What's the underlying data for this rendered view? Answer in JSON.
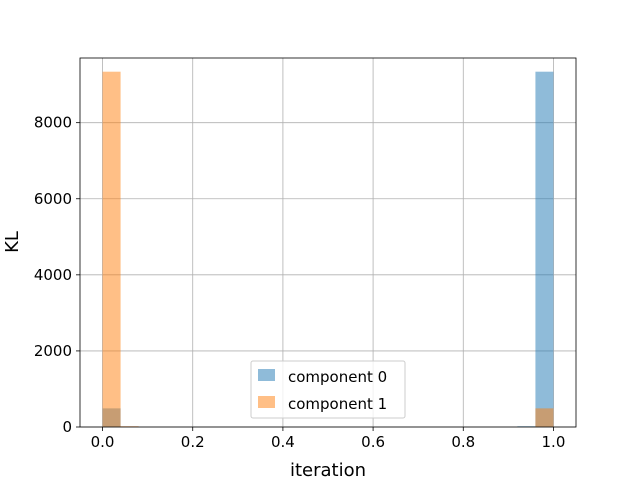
{
  "chart_data": {
    "type": "bar",
    "xlabel": "iteration",
    "ylabel": "KL",
    "xlim": [
      -0.05,
      1.05
    ],
    "ylim": [
      0,
      9700
    ],
    "xticks": [
      0.0,
      0.2,
      0.4,
      0.6,
      0.8,
      1.0
    ],
    "xtick_labels": [
      "0.0",
      "0.2",
      "0.4",
      "0.6",
      "0.8",
      "1.0"
    ],
    "yticks": [
      0,
      2000,
      4000,
      6000,
      8000
    ],
    "ytick_labels": [
      "0",
      "2000",
      "4000",
      "6000",
      "8000"
    ],
    "grid": true,
    "legend_position": "lower-center",
    "bin_width": 0.04,
    "series": [
      {
        "name": "component 0",
        "color": "#1f77b4",
        "opacity": 0.5,
        "bins": [
          {
            "x0": 0.0,
            "value": 490
          },
          {
            "x0": 0.92,
            "value": 20
          },
          {
            "x0": 0.96,
            "value": 9340
          }
        ]
      },
      {
        "name": "component 1",
        "color": "#ff7f0e",
        "opacity": 0.5,
        "bins": [
          {
            "x0": 0.0,
            "value": 9340
          },
          {
            "x0": 0.04,
            "value": 20
          },
          {
            "x0": 0.96,
            "value": 490
          }
        ]
      }
    ]
  }
}
